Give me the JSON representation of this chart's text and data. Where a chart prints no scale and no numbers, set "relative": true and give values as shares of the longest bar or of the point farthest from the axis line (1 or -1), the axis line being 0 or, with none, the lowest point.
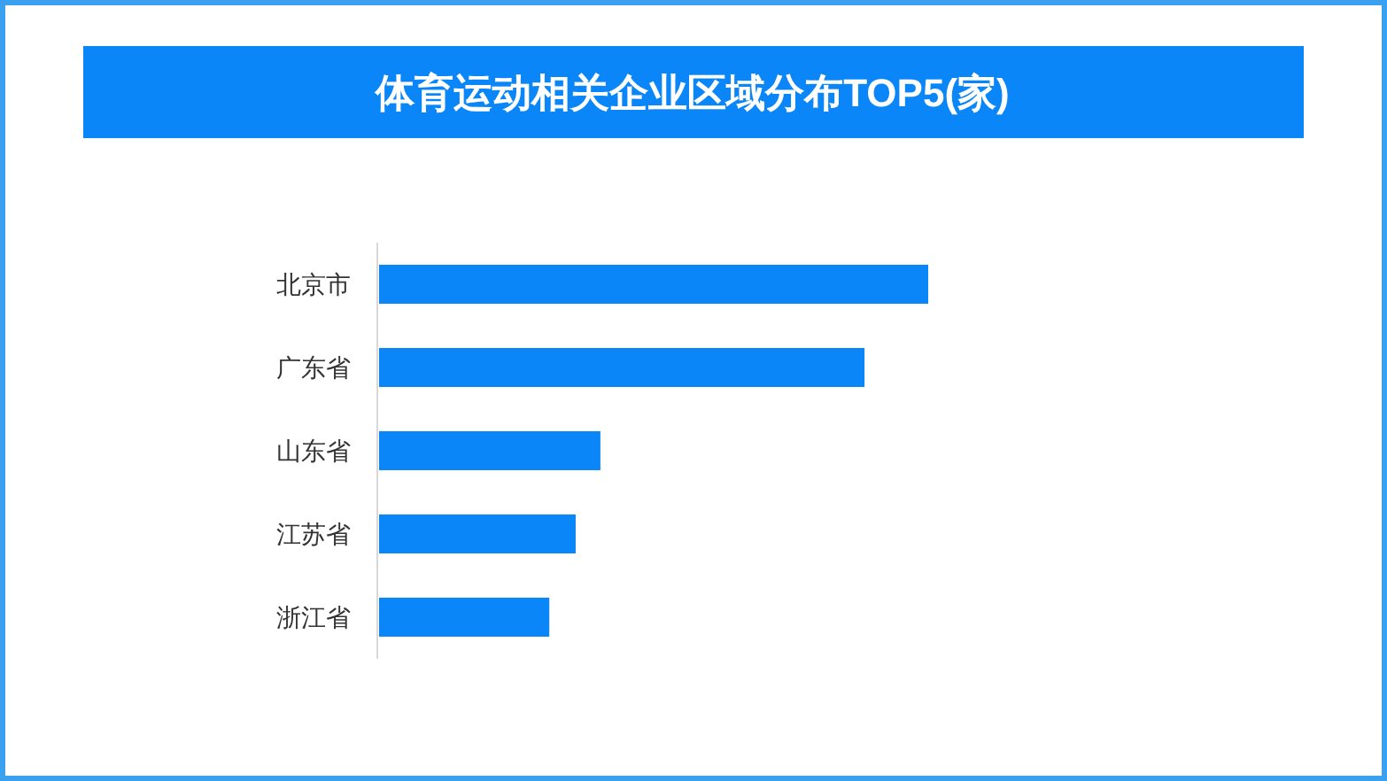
{
  "chart_data": {
    "type": "bar",
    "orientation": "horizontal",
    "relative": true,
    "title": "体育运动相关企业区域分布TOP5(家)",
    "categories": [
      "北京市",
      "广东省",
      "山东省",
      "江苏省",
      "浙江省"
    ],
    "values": [
      1,
      0.884,
      0.403,
      0.358,
      0.31
    ],
    "color": "#0a86f8"
  }
}
